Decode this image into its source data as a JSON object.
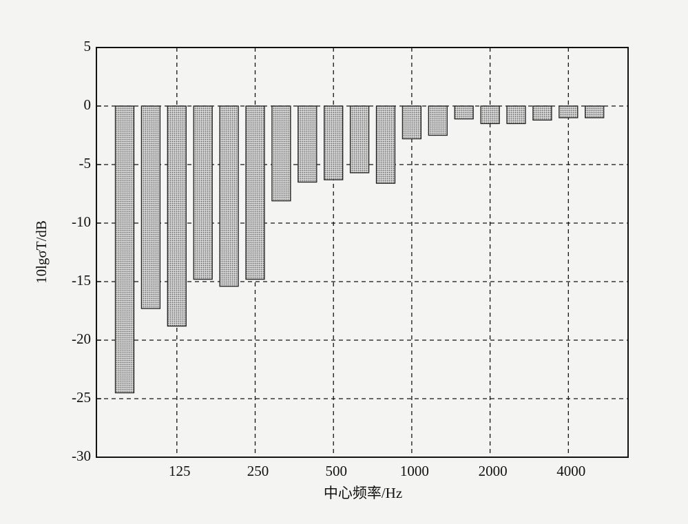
{
  "chart_data": {
    "type": "bar",
    "x_label": "中心频率/Hz",
    "y_label": "10lgσT/dB",
    "categories": [
      null,
      null,
      "125",
      null,
      null,
      "250",
      null,
      null,
      "500",
      null,
      null,
      "1000",
      null,
      null,
      "2000",
      null,
      null,
      "4000",
      null
    ],
    "values": [
      -24.5,
      -17.3,
      -18.8,
      -14.8,
      -15.4,
      -14.8,
      -8.1,
      -6.5,
      -6.3,
      -5.7,
      -6.6,
      -2.8,
      -2.5,
      -1.1,
      -1.5,
      -1.5,
      -1.2,
      -1.0,
      -1.0
    ],
    "color": "#b9b9b9",
    "ylim": [
      -30,
      5
    ],
    "yticks": [
      -30,
      -25,
      -20,
      -15,
      -10,
      -5,
      0,
      5
    ],
    "grid": true
  }
}
